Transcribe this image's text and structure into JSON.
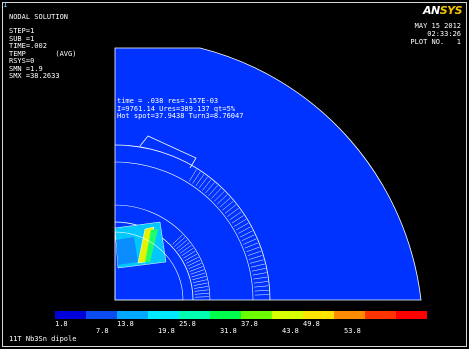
{
  "window_number": "1",
  "result_header": {
    "title": "NODAL SOLUTION",
    "lines": [
      "STEP=1",
      "SUB =1",
      "TIME=.002",
      "TEMP       (AVG)",
      "RSYS=0",
      "SMN =1.9",
      "SMX =38.2633"
    ]
  },
  "logo": {
    "an": "AN",
    "sys": "SYS"
  },
  "info": {
    "date": "MAY 15 2012",
    "time": "02:33:26",
    "plot_no": "PLOT NO.   1"
  },
  "annotations": [
    "time = .038 res=.157E-03",
    "I=9761.14 Ures=389.137 qt=5%",
    "Hot spot=37.9438 Turn3=8.76047"
  ],
  "legend": {
    "labels_top": [
      "1.8",
      "13.8",
      "25.8",
      "37.8",
      "49.8"
    ],
    "labels_bottom": [
      "7.8",
      "19.8",
      "31.8",
      "43.8",
      "53.8"
    ],
    "colors": [
      "#0000d8",
      "#0a4cf0",
      "#00a8ff",
      "#00e8ff",
      "#00ffb0",
      "#00ff4c",
      "#6cff00",
      "#d8ff00",
      "#ffe400",
      "#ff8c00",
      "#ff3400",
      "#ff0000"
    ]
  },
  "caption": "11T Nb3Sn dipole",
  "colors": {
    "background": "#000000",
    "field": "#0033ff",
    "hotspot": "#e6f200",
    "warm": "#00e8ff",
    "mid": "#0099ff",
    "line": "#ffffff"
  }
}
